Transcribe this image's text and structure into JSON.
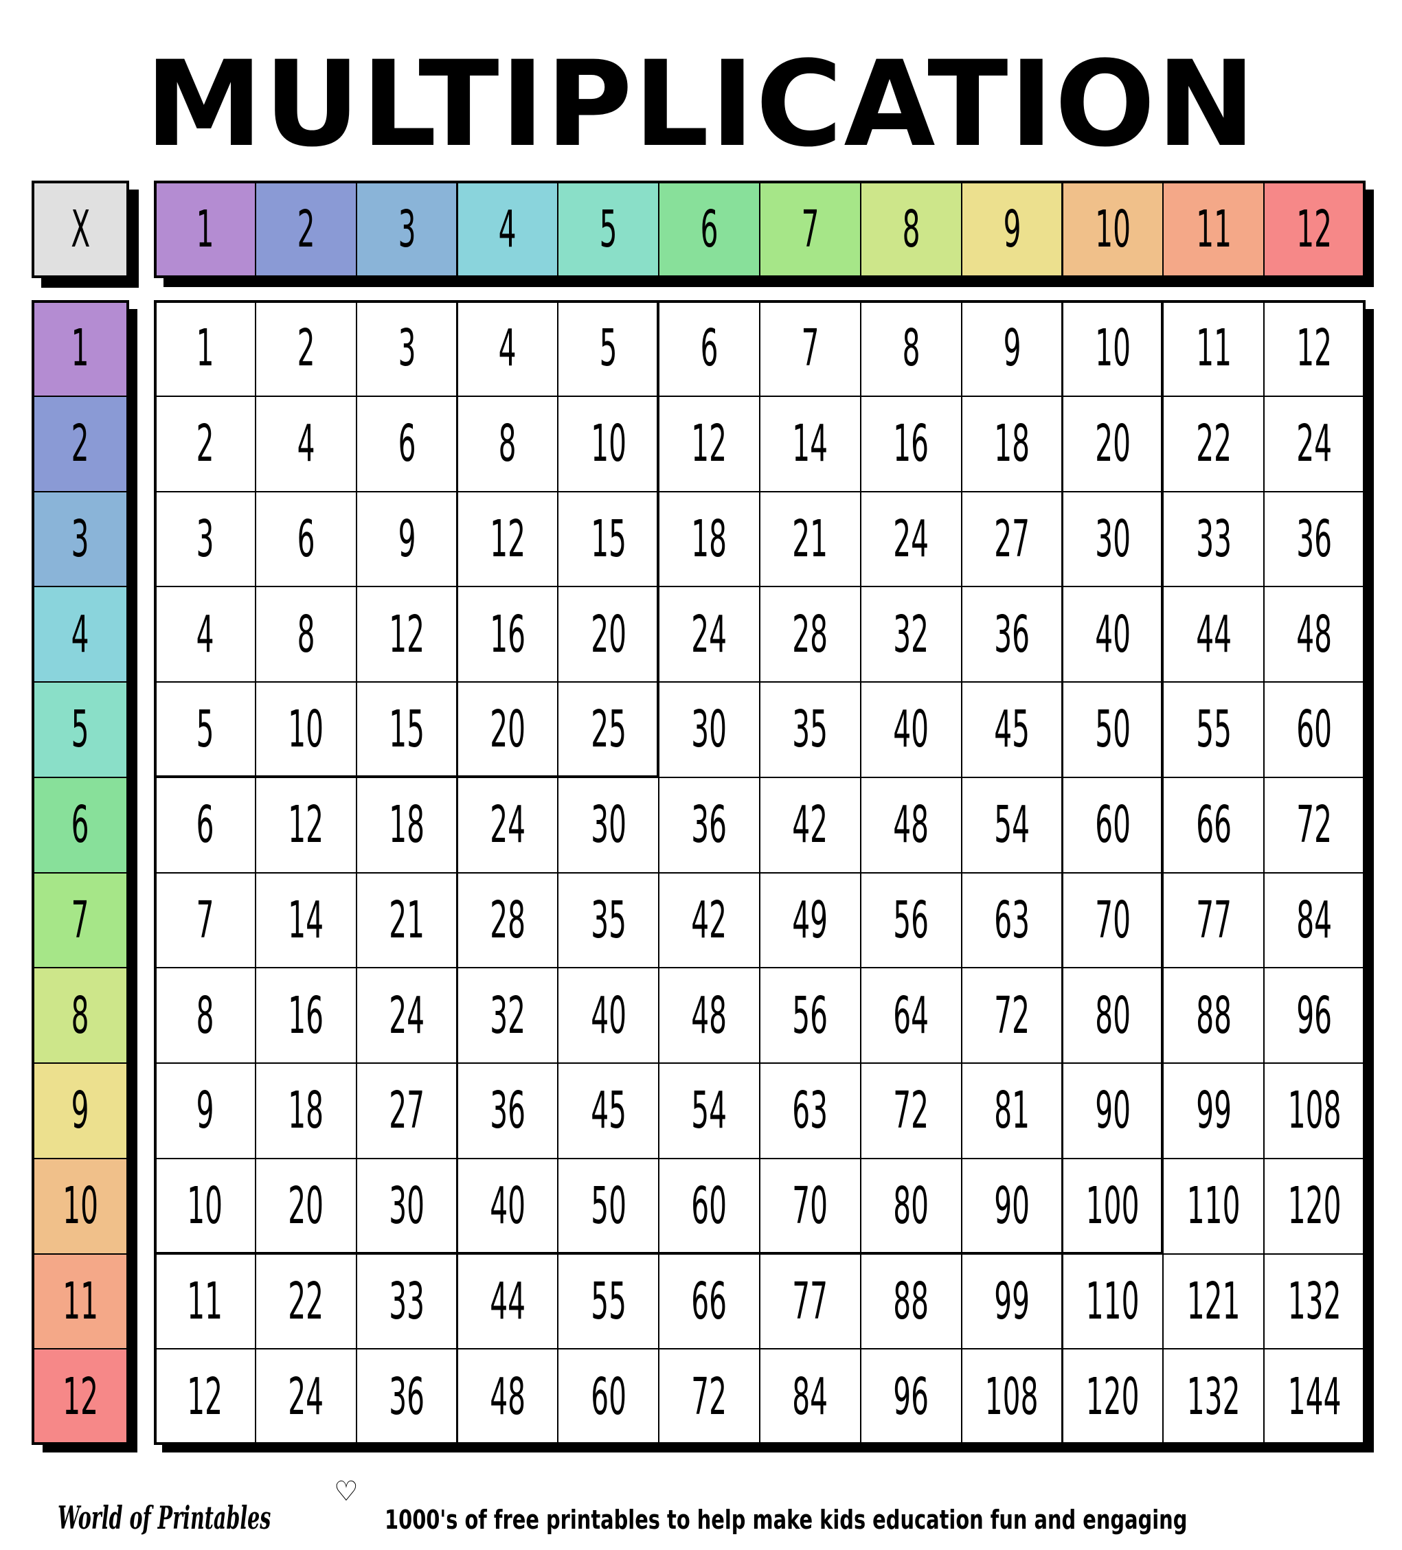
{
  "title": "MULTIPLICATION",
  "corner_label": "X",
  "header_numbers": [
    "1",
    "2",
    "3",
    "4",
    "5",
    "6",
    "7",
    "8",
    "9",
    "10",
    "11",
    "12"
  ],
  "row_numbers": [
    "1",
    "2",
    "3",
    "4",
    "5",
    "6",
    "7",
    "8",
    "9",
    "10",
    "11",
    "12"
  ],
  "colors": {
    "corner": "#e0e0e0",
    "headers": [
      "#b48cd2",
      "#8a9ad5",
      "#8ab4d8",
      "#8ad4dc",
      "#8adfc8",
      "#88e09a",
      "#a6e688",
      "#cde68a",
      "#ece08e",
      "#f0c08a",
      "#f4a888",
      "#f68888"
    ]
  },
  "table": [
    [
      "1",
      "2",
      "3",
      "4",
      "5",
      "6",
      "7",
      "8",
      "9",
      "10",
      "11",
      "12"
    ],
    [
      "2",
      "4",
      "6",
      "8",
      "10",
      "12",
      "14",
      "16",
      "18",
      "20",
      "22",
      "24"
    ],
    [
      "3",
      "6",
      "9",
      "12",
      "15",
      "18",
      "21",
      "24",
      "27",
      "30",
      "33",
      "36"
    ],
    [
      "4",
      "8",
      "12",
      "16",
      "20",
      "24",
      "28",
      "32",
      "36",
      "40",
      "44",
      "48"
    ],
    [
      "5",
      "10",
      "15",
      "20",
      "25",
      "30",
      "35",
      "40",
      "45",
      "50",
      "55",
      "60"
    ],
    [
      "6",
      "12",
      "18",
      "24",
      "30",
      "36",
      "42",
      "48",
      "54",
      "60",
      "66",
      "72"
    ],
    [
      "7",
      "14",
      "21",
      "28",
      "35",
      "42",
      "49",
      "56",
      "63",
      "70",
      "77",
      "84"
    ],
    [
      "8",
      "16",
      "24",
      "32",
      "40",
      "48",
      "56",
      "64",
      "72",
      "80",
      "88",
      "96"
    ],
    [
      "9",
      "18",
      "27",
      "36",
      "45",
      "54",
      "63",
      "72",
      "81",
      "90",
      "99",
      "108"
    ],
    [
      "10",
      "20",
      "30",
      "40",
      "50",
      "60",
      "70",
      "80",
      "90",
      "100",
      "110",
      "120"
    ],
    [
      "11",
      "22",
      "33",
      "44",
      "55",
      "66",
      "77",
      "88",
      "99",
      "110",
      "121",
      "132"
    ],
    [
      "12",
      "24",
      "36",
      "48",
      "60",
      "72",
      "84",
      "96",
      "108",
      "120",
      "132",
      "144"
    ]
  ],
  "footer": {
    "logo": "World of Printables",
    "heart_icon": "heart-outline-icon",
    "tagline": "1000's of free printables to help make kids education fun and engaging"
  }
}
